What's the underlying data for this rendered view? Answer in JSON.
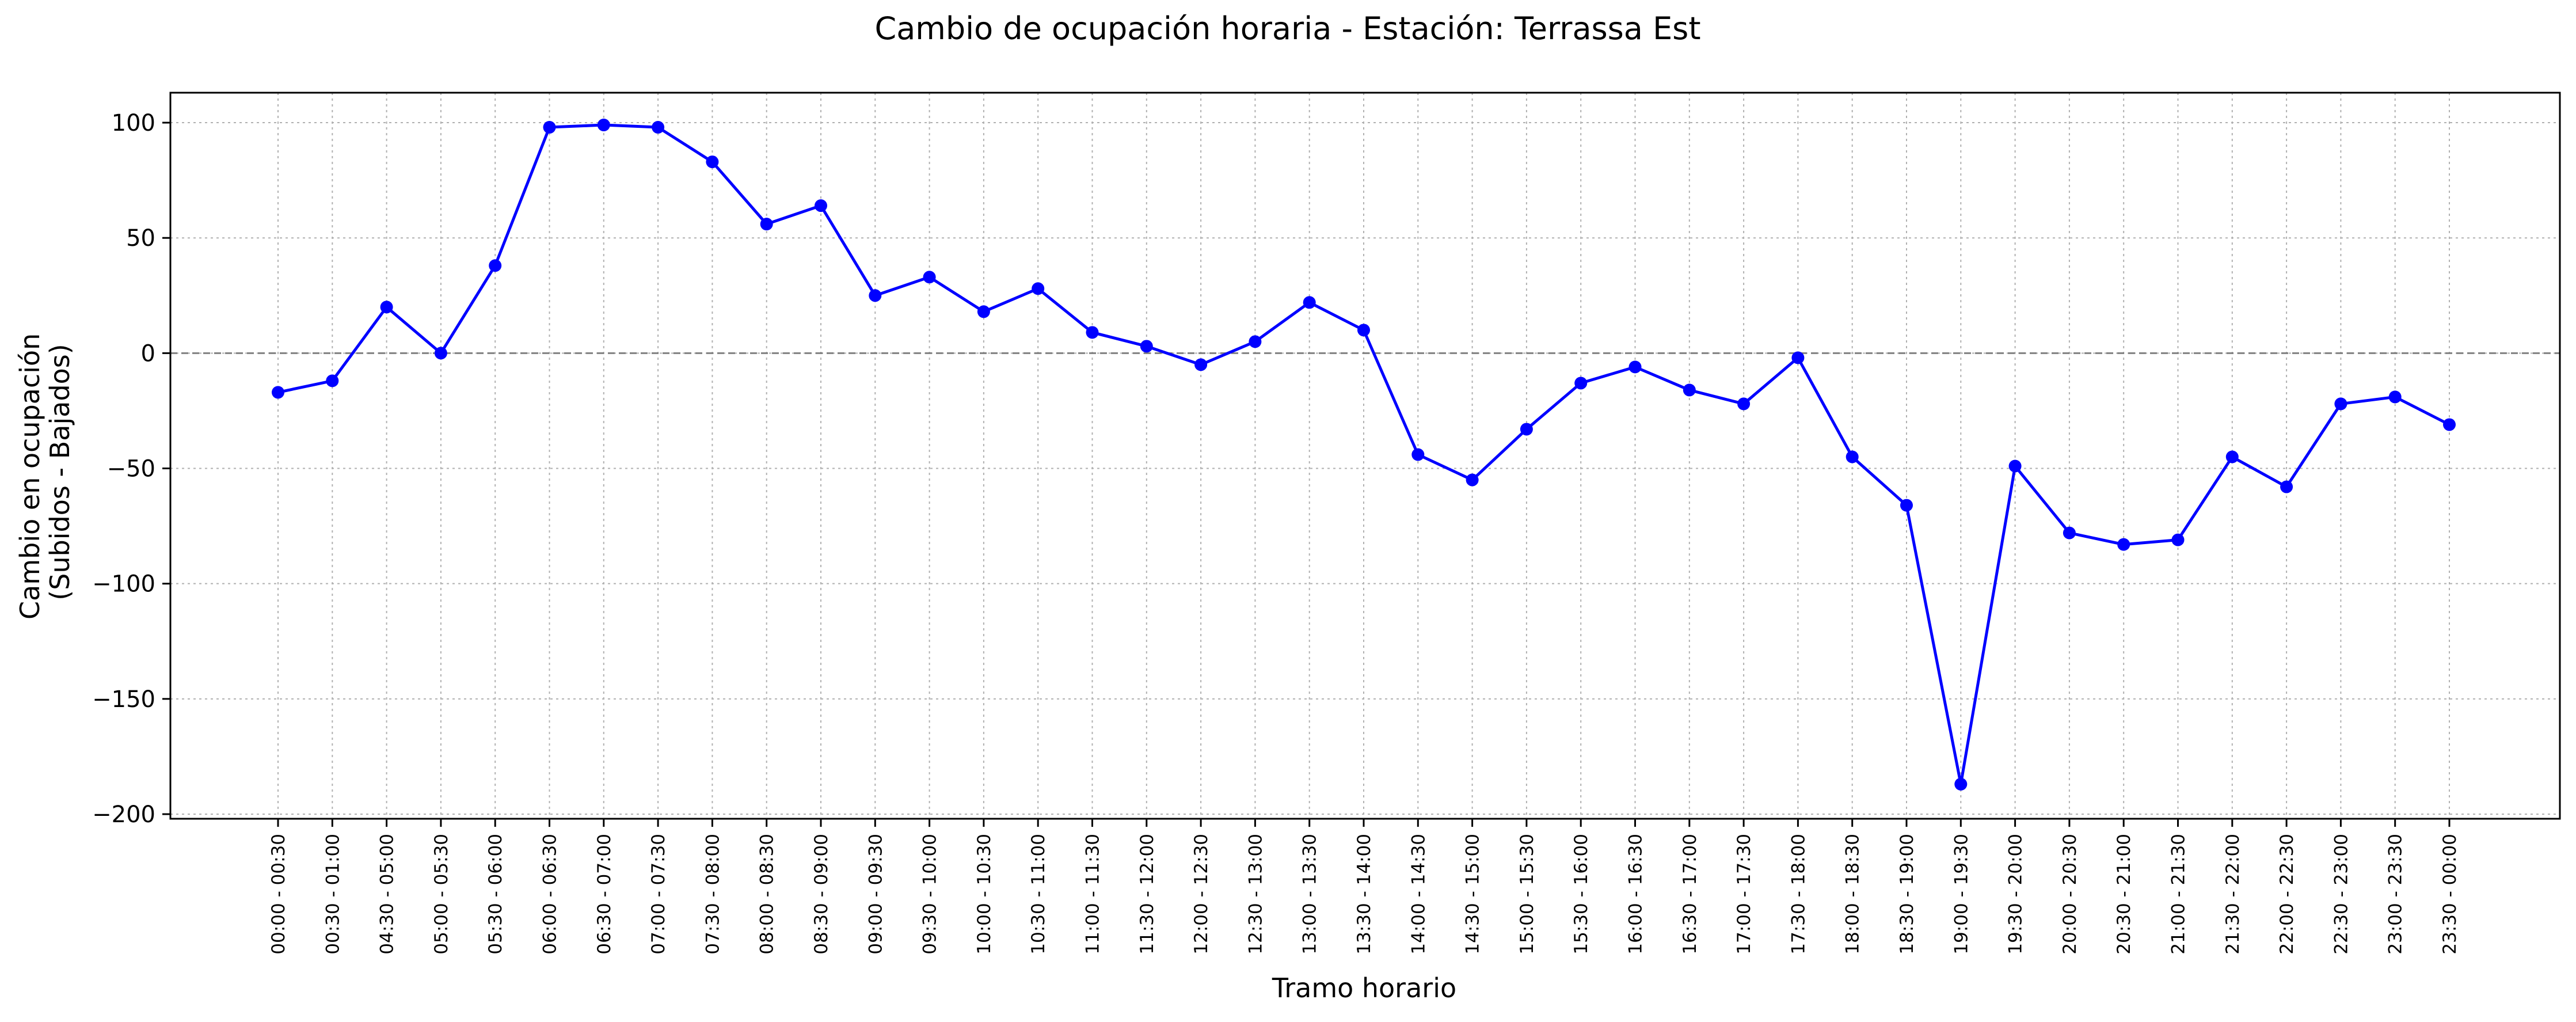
{
  "chart_data": {
    "type": "line",
    "title": "Cambio de ocupación horaria - Estación: Terrassa Est",
    "xlabel": "Tramo horario",
    "ylabel": [
      "Cambio en ocupación",
      "(Subidos - Bajados)"
    ],
    "ylim": [
      -202,
      113
    ],
    "yticks": [
      -200,
      -150,
      -100,
      -50,
      0,
      50,
      100
    ],
    "grid": true,
    "reference_line": 0,
    "colors": {
      "series": "#0000ff",
      "grid": "#b0b0b0",
      "reference": "#808080",
      "axes": "#000000"
    },
    "categories": [
      "00:00 - 00:30",
      "00:30 - 01:00",
      "04:30 - 05:00",
      "05:00 - 05:30",
      "05:30 - 06:00",
      "06:00 - 06:30",
      "06:30 - 07:00",
      "07:00 - 07:30",
      "07:30 - 08:00",
      "08:00 - 08:30",
      "08:30 - 09:00",
      "09:00 - 09:30",
      "09:30 - 10:00",
      "10:00 - 10:30",
      "10:30 - 11:00",
      "11:00 - 11:30",
      "11:30 - 12:00",
      "12:00 - 12:30",
      "12:30 - 13:00",
      "13:00 - 13:30",
      "13:30 - 14:00",
      "14:00 - 14:30",
      "14:30 - 15:00",
      "15:00 - 15:30",
      "15:30 - 16:00",
      "16:00 - 16:30",
      "16:30 - 17:00",
      "17:00 - 17:30",
      "17:30 - 18:00",
      "18:00 - 18:30",
      "18:30 - 19:00",
      "19:00 - 19:30",
      "19:30 - 20:00",
      "20:00 - 20:30",
      "20:30 - 21:00",
      "21:00 - 21:30",
      "21:30 - 22:00",
      "22:00 - 22:30",
      "22:30 - 23:00",
      "23:00 - 23:30",
      "23:30 - 00:00"
    ],
    "values": [
      -17,
      -12,
      20,
      0,
      38,
      98,
      99,
      98,
      83,
      56,
      64,
      25,
      33,
      18,
      28,
      9,
      3,
      -5,
      5,
      22,
      10,
      -44,
      -55,
      -33,
      -13,
      -6,
      -16,
      -22,
      -2,
      -45,
      -66,
      -187,
      -49,
      -78,
      -83,
      -81,
      -45,
      -58,
      -22,
      -19,
      -31
    ]
  }
}
